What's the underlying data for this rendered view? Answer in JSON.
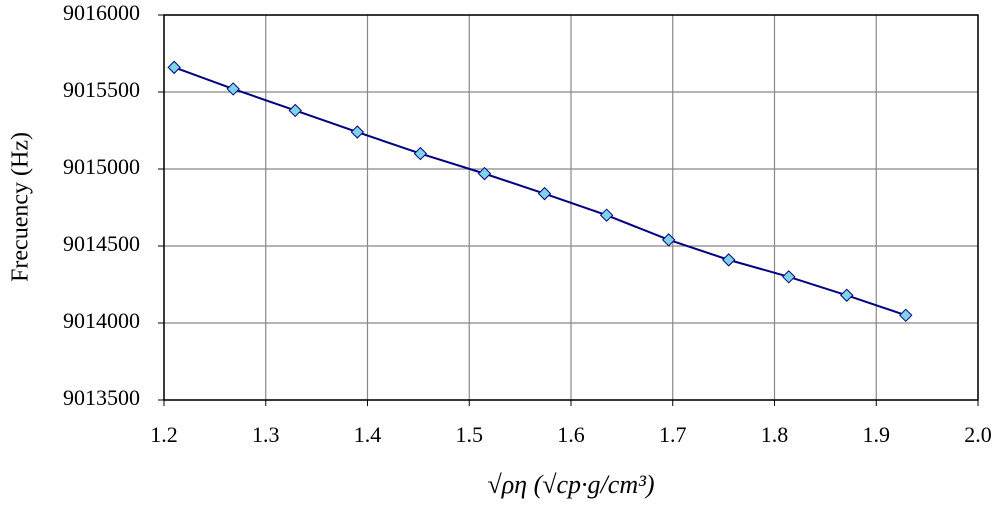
{
  "chart_data": {
    "type": "line",
    "x_label": "√ρη (√cp·g/cm³)",
    "y_label": "Frecuency (Hz)",
    "x": [
      1.21,
      1.268,
      1.329,
      1.39,
      1.452,
      1.515,
      1.574,
      1.635,
      1.696,
      1.755,
      1.814,
      1.871,
      1.929
    ],
    "series": [
      {
        "color": "#000080",
        "marker_color": "#7fd3e6",
        "values": [
          9015660,
          9015520,
          9015380,
          9015240,
          9015100,
          9014970,
          9014840,
          9014700,
          9014540,
          9014410,
          9014300,
          9014180,
          9014050
        ]
      }
    ],
    "xlim": [
      1.2,
      2.0
    ],
    "xticks": [
      1.2,
      1.3,
      1.4,
      1.5,
      1.6,
      1.7,
      1.8,
      1.9,
      {
        "value": 2.0,
        "label": "2.0"
      }
    ],
    "ylim": [
      9013500,
      9016000
    ],
    "yticks": [
      9013500,
      9014000,
      9014500,
      9015000,
      9015500,
      9016000
    ],
    "grid": true
  }
}
